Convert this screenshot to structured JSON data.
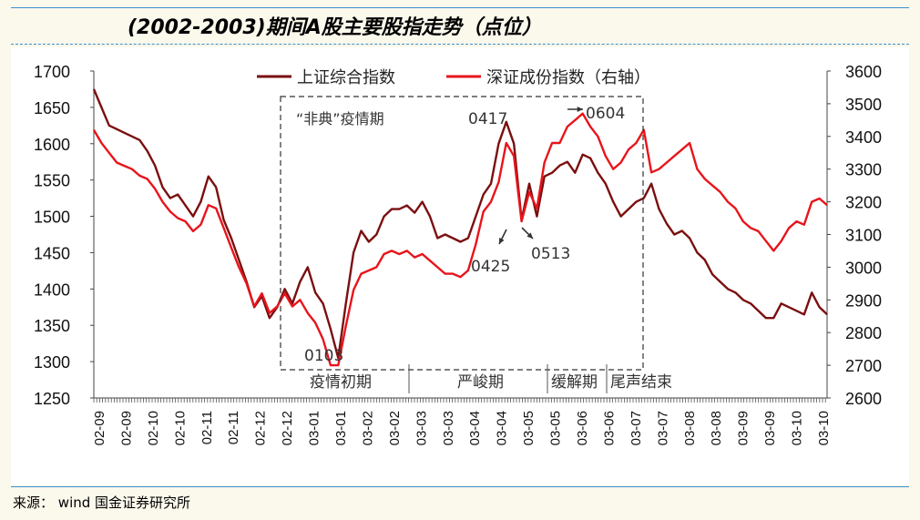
{
  "title": "(2002-2003)期间A股主要股指走势（点位）",
  "source_label": "来源：",
  "source_wind": "wind",
  "source_org": "国金证券研究所",
  "chart_data": {
    "type": "line",
    "x_ticks": [
      "02-09",
      "02-09",
      "02-10",
      "02-10",
      "02-11",
      "02-11",
      "02-12",
      "02-12",
      "03-01",
      "03-01",
      "03-02",
      "03-02",
      "03-03",
      "03-03",
      "03-04",
      "03-04",
      "03-05",
      "03-05",
      "03-06",
      "03-06",
      "03-07",
      "03-07",
      "03-08",
      "03-08",
      "03-09",
      "03-09",
      "03-10",
      "03-10"
    ],
    "left_axis": {
      "ylim": [
        1250,
        1700
      ],
      "ticks": [
        1250,
        1300,
        1350,
        1400,
        1450,
        1500,
        1550,
        1600,
        1650,
        1700
      ]
    },
    "right_axis": {
      "ylim": [
        2600,
        3600
      ],
      "ticks": [
        2600,
        2700,
        2800,
        2900,
        3000,
        3100,
        3200,
        3300,
        3400,
        3500,
        3600
      ]
    },
    "legend_position": "top",
    "series": [
      {
        "name": "上证综合指数",
        "axis": "left",
        "color": "#7b0f0f",
        "values": [
          1675,
          1650,
          1625,
          1620,
          1615,
          1610,
          1605,
          1590,
          1570,
          1540,
          1525,
          1530,
          1515,
          1500,
          1520,
          1555,
          1540,
          1495,
          1470,
          1440,
          1410,
          1375,
          1390,
          1360,
          1375,
          1400,
          1380,
          1410,
          1430,
          1395,
          1380,
          1345,
          1305,
          1380,
          1450,
          1480,
          1465,
          1475,
          1500,
          1510,
          1510,
          1515,
          1505,
          1520,
          1500,
          1470,
          1475,
          1470,
          1465,
          1470,
          1500,
          1530,
          1545,
          1600,
          1630,
          1600,
          1495,
          1545,
          1500,
          1555,
          1560,
          1570,
          1575,
          1560,
          1585,
          1580,
          1560,
          1545,
          1520,
          1500,
          1510,
          1520,
          1525,
          1545,
          1510,
          1490,
          1475,
          1480,
          1470,
          1450,
          1440,
          1420,
          1410,
          1400,
          1395,
          1385,
          1380,
          1370,
          1360,
          1360,
          1380,
          1375,
          1370,
          1365,
          1395,
          1375,
          1365
        ]
      },
      {
        "name": "深证成份指数（右轴）",
        "axis": "right",
        "color": "#e8141b",
        "values": [
          3420,
          3380,
          3350,
          3320,
          3310,
          3300,
          3280,
          3270,
          3240,
          3200,
          3170,
          3150,
          3140,
          3110,
          3130,
          3190,
          3180,
          3120,
          3060,
          3000,
          2950,
          2880,
          2920,
          2860,
          2880,
          2920,
          2880,
          2900,
          2860,
          2830,
          2780,
          2700,
          2700,
          2820,
          2930,
          2980,
          2990,
          3000,
          3040,
          3050,
          3040,
          3050,
          3030,
          3040,
          3020,
          3000,
          2980,
          2980,
          2970,
          2990,
          3070,
          3170,
          3200,
          3260,
          3380,
          3340,
          3140,
          3230,
          3180,
          3320,
          3380,
          3380,
          3430,
          3450,
          3470,
          3430,
          3400,
          3340,
          3300,
          3320,
          3360,
          3380,
          3420,
          3290,
          3300,
          3320,
          3340,
          3360,
          3380,
          3300,
          3270,
          3250,
          3230,
          3200,
          3180,
          3140,
          3120,
          3110,
          3080,
          3050,
          3080,
          3120,
          3140,
          3130,
          3200,
          3210,
          3190
        ]
      }
    ],
    "annotations": [
      {
        "text": "“非典”疫情期"
      },
      {
        "text": "0417"
      },
      {
        "text": "0604"
      },
      {
        "text": "0425"
      },
      {
        "text": "0513"
      },
      {
        "text": "0103"
      },
      {
        "text": "疫情初期"
      },
      {
        "text": "严峻期"
      },
      {
        "text": "缓解期"
      },
      {
        "text": "尾声结束"
      }
    ]
  }
}
